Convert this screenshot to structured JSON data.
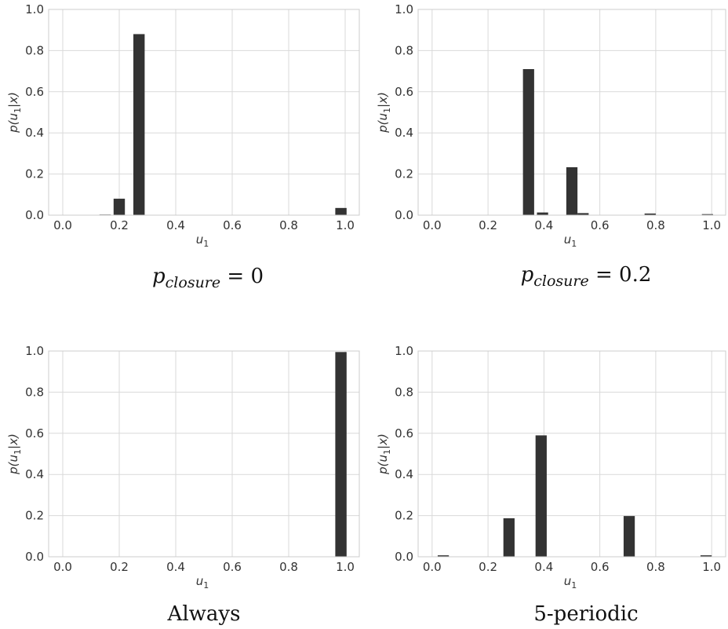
{
  "figure": {
    "panels": [
      {
        "caption": {
          "var": "p",
          "sub": "closure",
          "rest": " = 0"
        },
        "xlabel": {
          "var": "u",
          "sub": "1"
        },
        "ylabel": {
          "pre": "p(",
          "var": "u",
          "sub": "1",
          "post": "|x)"
        }
      },
      {
        "caption": {
          "var": "p",
          "sub": "closure",
          "rest": " = 0.2"
        },
        "xlabel": {
          "var": "u",
          "sub": "1"
        },
        "ylabel": {
          "pre": "p(",
          "var": "u",
          "sub": "1",
          "post": "|x)"
        }
      },
      {
        "caption": {
          "var": "",
          "sub": "",
          "rest": "Always"
        },
        "xlabel": {
          "var": "u",
          "sub": "1"
        },
        "ylabel": {
          "pre": "p(",
          "var": "u",
          "sub": "1",
          "post": "|x)"
        }
      },
      {
        "caption": {
          "var": "",
          "sub": "",
          "rest": "5-periodic"
        },
        "xlabel": {
          "var": "u",
          "sub": "1"
        },
        "ylabel": {
          "pre": "p(",
          "var": "u",
          "sub": "1",
          "post": "|x)"
        }
      }
    ]
  },
  "chart_data": [
    {
      "type": "bar",
      "title": "",
      "caption": "p_closure = 0",
      "xlabel": "u1",
      "ylabel": "p(u1|x)",
      "xlim": [
        -0.05,
        1.05
      ],
      "ylim": [
        0,
        1.0
      ],
      "xticks": [
        "0.0",
        "0.2",
        "0.4",
        "0.6",
        "0.8",
        "1.0"
      ],
      "yticks": [
        "0.0",
        "0.2",
        "0.4",
        "0.6",
        "0.8",
        "1.0"
      ],
      "grid": true,
      "bar_width": 0.04,
      "x": [
        0.15,
        0.2,
        0.27,
        0.985
      ],
      "values": [
        0.003,
        0.08,
        0.88,
        0.035
      ]
    },
    {
      "type": "bar",
      "title": "",
      "caption": "p_closure = 0.2",
      "xlabel": "u1",
      "ylabel": "p(u1|x)",
      "xlim": [
        -0.05,
        1.05
      ],
      "ylim": [
        0,
        1.0
      ],
      "xticks": [
        "0.0",
        "0.2",
        "0.4",
        "0.6",
        "0.8",
        "1.0"
      ],
      "yticks": [
        "0.0",
        "0.2",
        "0.4",
        "0.6",
        "0.8",
        "1.0"
      ],
      "grid": true,
      "bar_width": 0.04,
      "x": [
        0.345,
        0.395,
        0.5,
        0.54,
        0.78,
        0.985
      ],
      "values": [
        0.71,
        0.013,
        0.233,
        0.01,
        0.008,
        0.005
      ]
    },
    {
      "type": "bar",
      "title": "",
      "caption": "Always",
      "xlabel": "u1",
      "ylabel": "p(u1|x)",
      "xlim": [
        -0.05,
        1.05
      ],
      "ylim": [
        0,
        1.0
      ],
      "xticks": [
        "0.0",
        "0.2",
        "0.4",
        "0.6",
        "0.8",
        "1.0"
      ],
      "yticks": [
        "0.0",
        "0.2",
        "0.4",
        "0.6",
        "0.8",
        "1.0"
      ],
      "grid": true,
      "bar_width": 0.04,
      "x": [
        0.985
      ],
      "values": [
        0.995
      ]
    },
    {
      "type": "bar",
      "title": "",
      "caption": "5-periodic",
      "xlabel": "u1",
      "ylabel": "p(u1|x)",
      "xlim": [
        -0.05,
        1.05
      ],
      "ylim": [
        0,
        1.0
      ],
      "xticks": [
        "0.0",
        "0.2",
        "0.4",
        "0.6",
        "0.8",
        "1.0"
      ],
      "yticks": [
        "0.0",
        "0.2",
        "0.4",
        "0.6",
        "0.8",
        "1.0"
      ],
      "grid": true,
      "bar_width": 0.04,
      "x": [
        0.04,
        0.275,
        0.39,
        0.705,
        0.98
      ],
      "values": [
        0.007,
        0.187,
        0.59,
        0.198,
        0.007
      ]
    }
  ]
}
